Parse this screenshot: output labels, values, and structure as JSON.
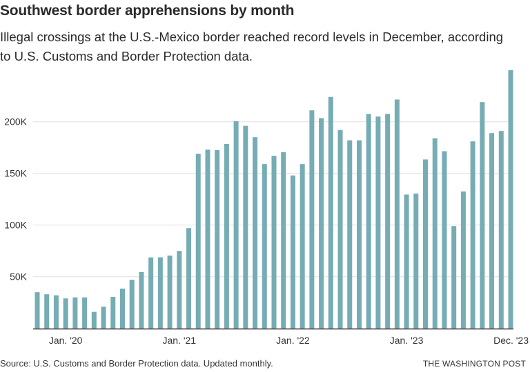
{
  "header": {
    "title": "Southwest border apprehensions by month",
    "subtitle": "Illegal crossings at the U.S.-Mexico border reached record levels in December, according to U.S. Customs and Border Protection data."
  },
  "footer": {
    "source": "Source: U.S. Customs and Border Protection data. Updated monthly.",
    "credit": "THE WASHINGTON POST"
  },
  "colors": {
    "bar": "#76acb4",
    "grid": "#e4e4e4",
    "baseline": "#333333",
    "text": "#2a2a2a"
  },
  "chart_data": {
    "type": "bar",
    "title": "Southwest border apprehensions by month",
    "xlabel": "",
    "ylabel": "",
    "ylim": [
      0,
      250000
    ],
    "grid": true,
    "legend": "none",
    "yticks": [
      {
        "value": 50000,
        "label": "50K"
      },
      {
        "value": 100000,
        "label": "100K"
      },
      {
        "value": 150000,
        "label": "150K"
      },
      {
        "value": 200000,
        "label": "200K"
      }
    ],
    "xticks": [
      {
        "index": 3,
        "label": "Jan. '20"
      },
      {
        "index": 15,
        "label": "Jan. '21"
      },
      {
        "index": 27,
        "label": "Jan. '22"
      },
      {
        "index": 39,
        "label": "Jan. '23"
      },
      {
        "index": 50,
        "label": "Dec. '23"
      }
    ],
    "categories": [
      "Oct 2019",
      "Nov 2019",
      "Dec 2019",
      "Jan 2020",
      "Feb 2020",
      "Mar 2020",
      "Apr 2020",
      "May 2020",
      "Jun 2020",
      "Jul 2020",
      "Aug 2020",
      "Sep 2020",
      "Oct 2020",
      "Nov 2020",
      "Dec 2020",
      "Jan 2021",
      "Feb 2021",
      "Mar 2021",
      "Apr 2021",
      "May 2021",
      "Jun 2021",
      "Jul 2021",
      "Aug 2021",
      "Sep 2021",
      "Oct 2021",
      "Nov 2021",
      "Dec 2021",
      "Jan 2022",
      "Feb 2022",
      "Mar 2022",
      "Apr 2022",
      "May 2022",
      "Jun 2022",
      "Jul 2022",
      "Aug 2022",
      "Sep 2022",
      "Oct 2022",
      "Nov 2022",
      "Dec 2022",
      "Jan 2023",
      "Feb 2023",
      "Mar 2023",
      "Apr 2023",
      "May 2023",
      "Jun 2023",
      "Jul 2023",
      "Aug 2023",
      "Sep 2023",
      "Oct 2023",
      "Nov 2023",
      "Dec 2023"
    ],
    "values": [
      35000,
      33000,
      32000,
      29000,
      30000,
      30000,
      16000,
      21000,
      30500,
      38500,
      47000,
      54500,
      68700,
      68800,
      70500,
      75000,
      97000,
      169000,
      173000,
      172500,
      178500,
      200500,
      196000,
      185000,
      159000,
      167000,
      170500,
      148000,
      159000,
      211000,
      203500,
      224000,
      192000,
      182000,
      182000,
      207500,
      205000,
      207500,
      221500,
      129500,
      130500,
      163500,
      184000,
      171500,
      99000,
      132500,
      181000,
      219000,
      189000,
      191000,
      250000
    ]
  }
}
